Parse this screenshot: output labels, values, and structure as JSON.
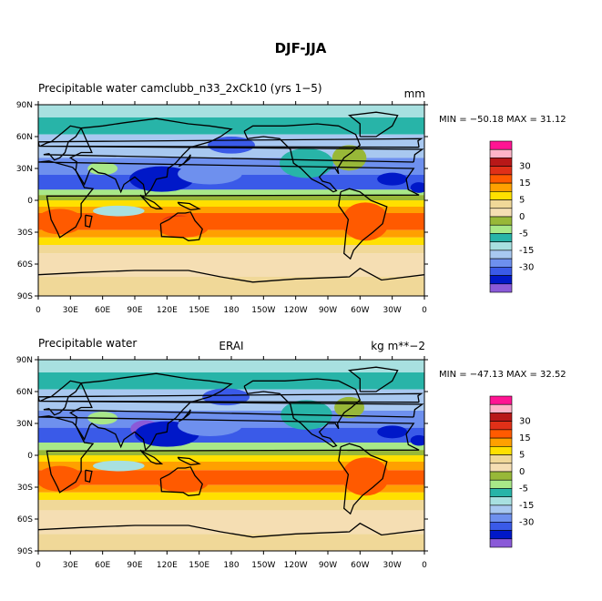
{
  "title": "DJF-JJA",
  "colorbar": {
    "colors": [
      "#8a5ad8",
      "#0018c8",
      "#3a5ae8",
      "#6e90ee",
      "#a8c8f0",
      "#a8e0e0",
      "#28b4a8",
      "#a8e888",
      "#98b838",
      "#f5deb3",
      "#f0d898",
      "#ffe000",
      "#ffa000",
      "#ff5a00",
      "#e03018",
      "#b81818",
      "#ffb4c8",
      "#ff1493"
    ],
    "labels": [
      "-30",
      "-15",
      "-5",
      "0",
      "5",
      "15",
      "30"
    ]
  },
  "lon_ticks": [
    "0",
    "30E",
    "60E",
    "90E",
    "120E",
    "150E",
    "180",
    "150W",
    "120W",
    "90W",
    "60W",
    "30W",
    "0"
  ],
  "lat_ticks": [
    "90N",
    "60N",
    "30N",
    "0",
    "30S",
    "60S",
    "90S"
  ],
  "panels": [
    {
      "left": "Precipitable water",
      "center": "camclubb_n33_2xCk10 (yrs 1−5)",
      "right": "mm",
      "minmax": "MIN = −50.18 MAX =  31.12"
    },
    {
      "left": "Precipitable water",
      "center": "ERAI",
      "right": "kg m**−2",
      "minmax": "MIN = −47.13 MAX =  32.52"
    }
  ]
}
